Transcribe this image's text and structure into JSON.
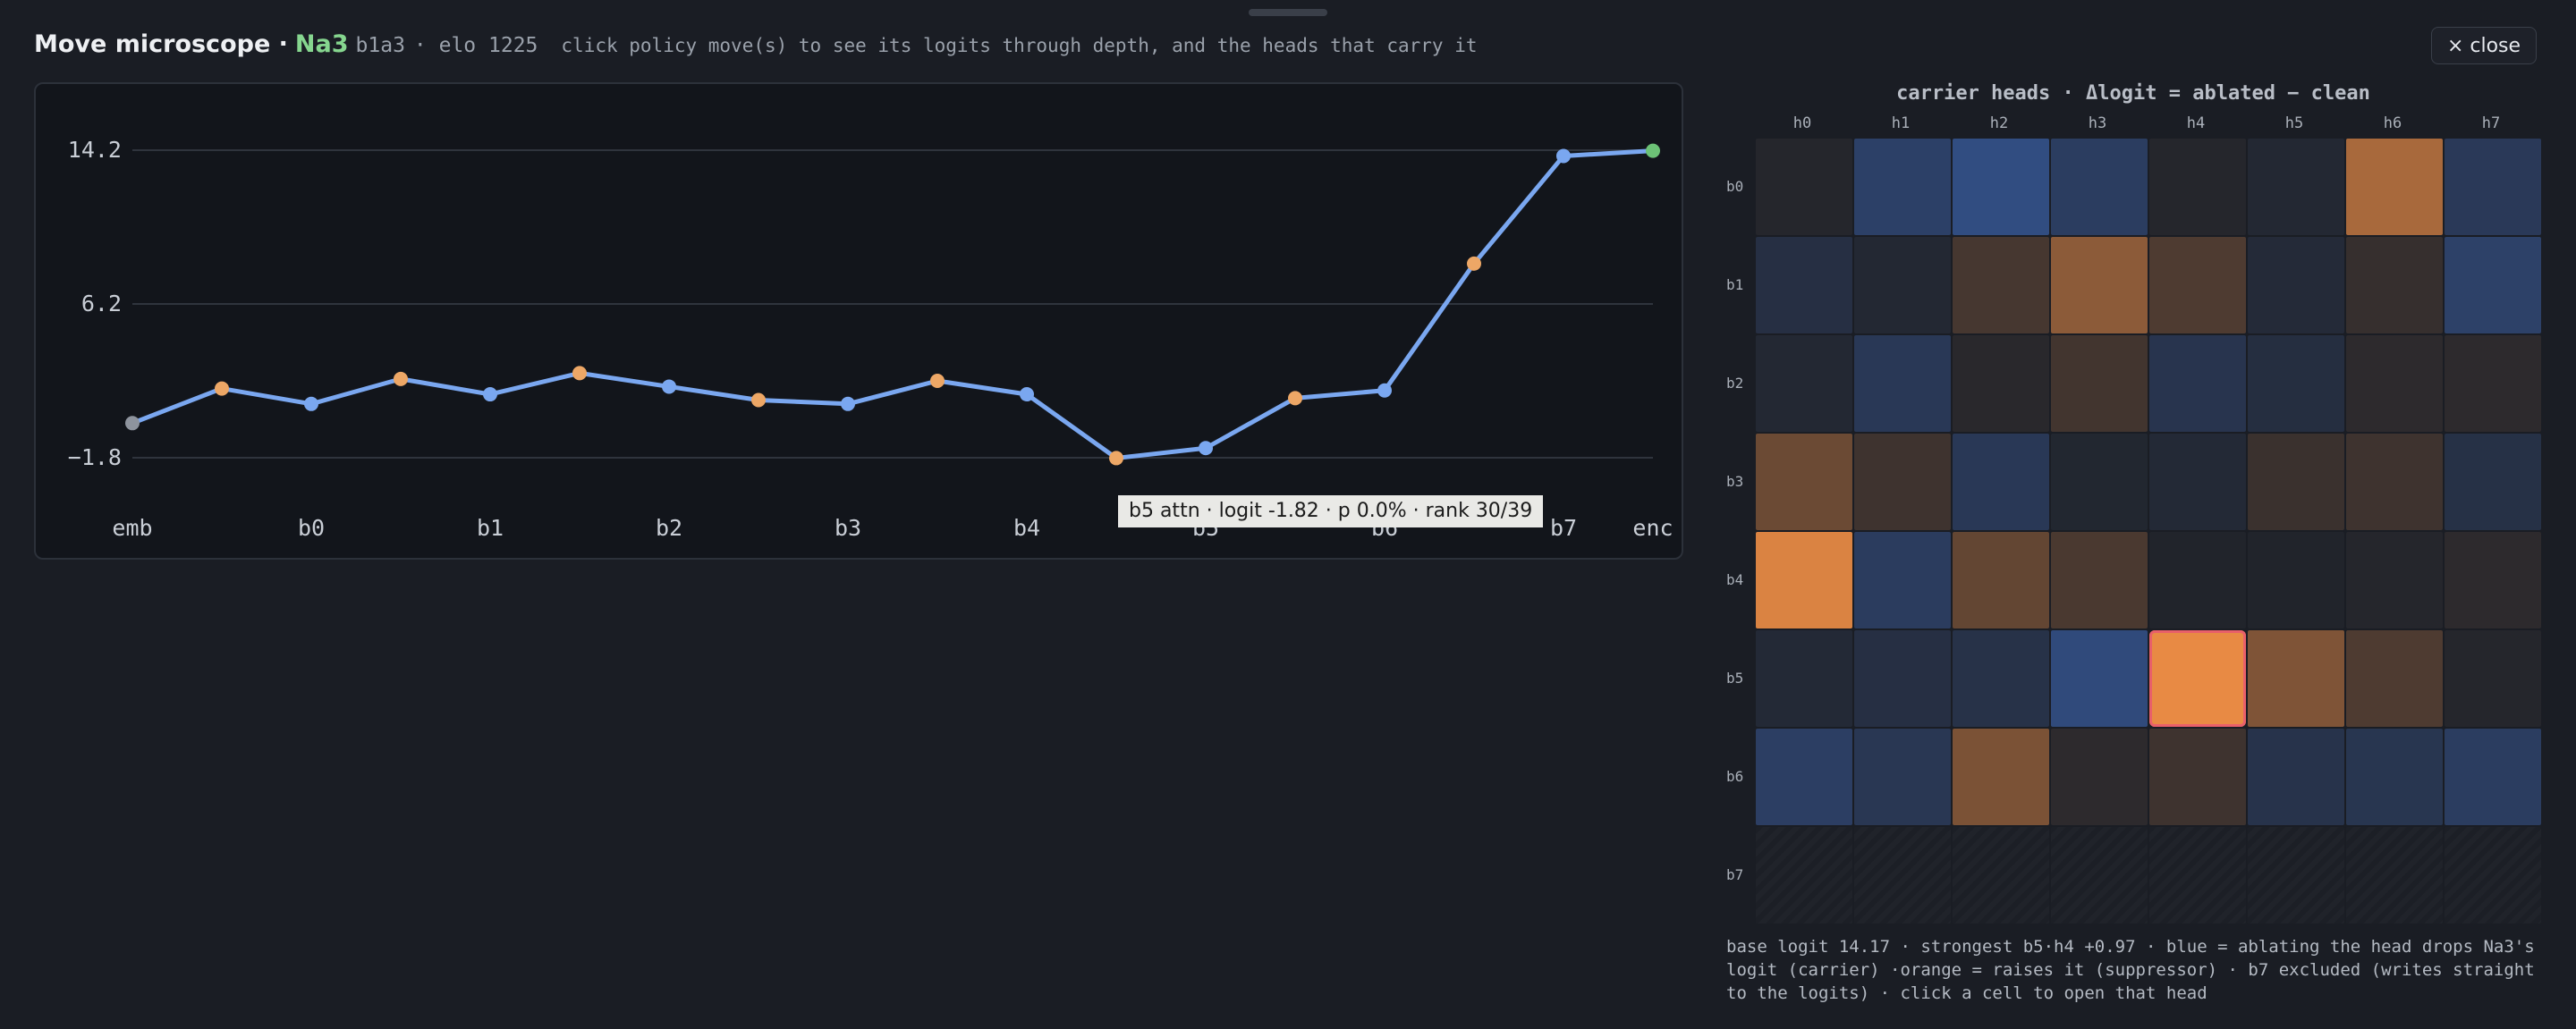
{
  "header": {
    "title": "Move microscope ·",
    "move": "Na3",
    "coord": "b1a3",
    "elo": "· elo 1225",
    "hint": "click policy move(s) to see its logits through depth, and the heads that carry it"
  },
  "close_label": "× close",
  "chart_data": {
    "type": "line",
    "title": "",
    "xlabel": "",
    "ylabel": "",
    "x_ticks": [
      "emb",
      "b0",
      "b1",
      "b2",
      "b3",
      "b4",
      "b5",
      "b6",
      "b7",
      "enc"
    ],
    "y_ticks": [
      "14.2",
      "6.2",
      "−1.8"
    ],
    "y_tick_values": [
      14.2,
      6.2,
      -1.8
    ],
    "ylim": [
      -1.8,
      14.2
    ],
    "grid": true,
    "series": [
      {
        "points": [
          {
            "x": "emb",
            "y": 0.0,
            "kind": "embed"
          },
          {
            "x": "b0 attn",
            "y": 1.8,
            "kind": "attn"
          },
          {
            "x": "b0",
            "y": 1.0,
            "kind": "mlp"
          },
          {
            "x": "b1 attn",
            "y": 2.3,
            "kind": "attn"
          },
          {
            "x": "b1",
            "y": 1.5,
            "kind": "mlp"
          },
          {
            "x": "b2 attn",
            "y": 2.6,
            "kind": "attn"
          },
          {
            "x": "b2",
            "y": 1.9,
            "kind": "mlp"
          },
          {
            "x": "b3 attn",
            "y": 1.2,
            "kind": "attn"
          },
          {
            "x": "b3",
            "y": 1.0,
            "kind": "mlp"
          },
          {
            "x": "b4 attn",
            "y": 2.2,
            "kind": "attn"
          },
          {
            "x": "b4",
            "y": 1.5,
            "kind": "mlp"
          },
          {
            "x": "b5 attn",
            "y": -1.82,
            "kind": "attn"
          },
          {
            "x": "b5",
            "y": -1.3,
            "kind": "mlp"
          },
          {
            "x": "b6 attn",
            "y": 1.3,
            "kind": "attn"
          },
          {
            "x": "b6",
            "y": 1.7,
            "kind": "mlp"
          },
          {
            "x": "b7 attn",
            "y": 8.3,
            "kind": "attn"
          },
          {
            "x": "b7",
            "y": 13.9,
            "kind": "mlp"
          },
          {
            "x": "enc",
            "y": 14.17,
            "kind": "final"
          }
        ]
      }
    ]
  },
  "tooltip": "b5 attn · logit -1.82 · p 0.0% · rank 30/39",
  "colors": {
    "line": "#7aa7f0",
    "attn_point": "#eda766",
    "mlp_point": "#7aa7f0",
    "embed_point": "#8e949e",
    "final_point": "#6cc276",
    "grid": "#2f343d",
    "carrier": "#3a63b0",
    "suppressor": "#ee8d45"
  },
  "heatmap": {
    "title": "carrier heads · Δlogit = ablated − clean",
    "columns": [
      "h0",
      "h1",
      "h2",
      "h3",
      "h4",
      "h5",
      "h6",
      "h7"
    ],
    "rows": [
      "b0",
      "b1",
      "b2",
      "b3",
      "b4",
      "b5",
      "b6",
      "b7"
    ],
    "values": [
      [
        0.02,
        -0.45,
        -0.65,
        -0.4,
        0.02,
        -0.06,
        0.66,
        -0.34
      ],
      [
        -0.18,
        -0.06,
        0.18,
        0.52,
        0.22,
        -0.1,
        0.1,
        -0.46
      ],
      [
        -0.06,
        -0.32,
        0.04,
        0.16,
        -0.26,
        -0.16,
        0.06,
        0.06
      ],
      [
        0.36,
        0.14,
        -0.32,
        -0.04,
        -0.08,
        0.12,
        0.14,
        -0.2
      ],
      [
        0.9,
        -0.38,
        0.32,
        0.2,
        0.0,
        0.0,
        0.02,
        0.06
      ],
      [
        -0.08,
        -0.18,
        -0.22,
        -0.6,
        0.97,
        0.46,
        0.22,
        0.02
      ],
      [
        -0.42,
        -0.3,
        0.44,
        0.06,
        0.14,
        -0.24,
        -0.28,
        -0.4
      ],
      [
        null,
        null,
        null,
        null,
        null,
        null,
        null,
        null
      ]
    ],
    "selected": {
      "row": 5,
      "col": 4
    }
  },
  "footnote": "base logit 14.17 · strongest b5·h4 +0.97 · blue = ablating the head drops Na3's logit (carrier) ·orange = raises it (suppressor) · b7 excluded (writes straight to the logits) · click a cell to open that head"
}
